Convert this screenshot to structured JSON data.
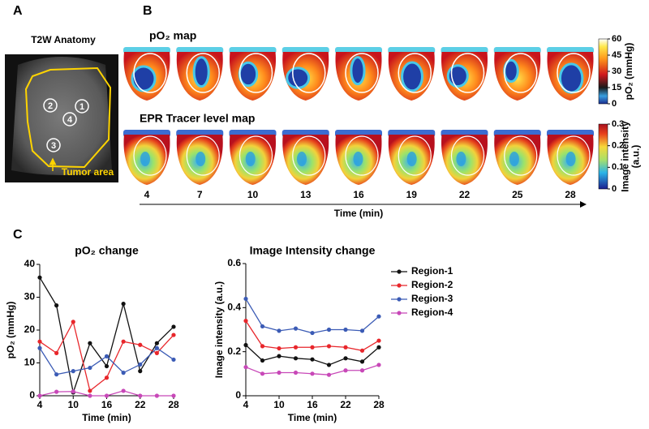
{
  "panel_a": {
    "label": "A",
    "title": "T2W Anatomy",
    "regions": [
      "1",
      "2",
      "3",
      "4"
    ],
    "annotation": "Tumor area"
  },
  "panel_b": {
    "label": "B",
    "map_titles": [
      "pO₂ map",
      "EPR Tracer level map"
    ],
    "times": [
      4,
      7,
      10,
      13,
      16,
      19,
      22,
      25,
      28
    ],
    "time_label": "Time (min)",
    "colorbars": [
      {
        "ticks": [
          0,
          15,
          30,
          45,
          60
        ],
        "label": [
          "pO₂ (mmHg)"
        ]
      },
      {
        "ticks": [
          0,
          0.1,
          0.2,
          0.3
        ],
        "label": [
          "Image intensity",
          "(a.u.)"
        ]
      }
    ]
  },
  "panel_c": {
    "label": "C"
  },
  "chart_data": [
    {
      "type": "line",
      "title": "pO₂ change",
      "x_label": "Time (min)",
      "y_label": "pO₂ (mmHg)",
      "x": [
        4,
        7,
        10,
        13,
        16,
        19,
        22,
        25,
        28
      ],
      "xlim": [
        4,
        28
      ],
      "xticks": [
        4,
        10,
        16,
        22,
        28
      ],
      "ylim": [
        0,
        40
      ],
      "yticks": [
        0,
        10,
        20,
        30,
        40
      ],
      "series": [
        {
          "name": "Region-1",
          "color": "#111111",
          "values": [
            36,
            27.5,
            1,
            16,
            9,
            28,
            7.5,
            16,
            21
          ]
        },
        {
          "name": "Region-2",
          "color": "#e8262b",
          "values": [
            16.5,
            13,
            22.5,
            1.5,
            5.5,
            16.5,
            15.5,
            13,
            18.5
          ]
        },
        {
          "name": "Region-3",
          "color": "#3b5bb5",
          "values": [
            14.5,
            6.5,
            7.5,
            8.5,
            12,
            7,
            9.5,
            14.5,
            11
          ]
        },
        {
          "name": "Region-4",
          "color": "#c848b8",
          "values": [
            0,
            1.2,
            1.3,
            0,
            0,
            1.5,
            0,
            0,
            0
          ]
        }
      ]
    },
    {
      "type": "line",
      "title": "Image Intensity change",
      "x_label": "Time (min)",
      "y_label": "Image  intensity (a.u.)",
      "x": [
        4,
        7,
        10,
        13,
        16,
        19,
        22,
        25,
        28
      ],
      "xlim": [
        4,
        28
      ],
      "xticks": [
        4,
        10,
        16,
        22,
        28
      ],
      "ylim": [
        0,
        0.6
      ],
      "yticks": [
        0,
        0.2,
        0.4,
        0.6
      ],
      "legend": "outside-right",
      "series": [
        {
          "name": "Region-1",
          "color": "#111111",
          "values": [
            0.23,
            0.16,
            0.18,
            0.17,
            0.165,
            0.14,
            0.17,
            0.155,
            0.22
          ]
        },
        {
          "name": "Region-2",
          "color": "#e8262b",
          "values": [
            0.34,
            0.225,
            0.215,
            0.22,
            0.22,
            0.225,
            0.22,
            0.205,
            0.25
          ]
        },
        {
          "name": "Region-3",
          "color": "#3b5bb5",
          "values": [
            0.44,
            0.315,
            0.295,
            0.305,
            0.285,
            0.3,
            0.3,
            0.295,
            0.36
          ]
        },
        {
          "name": "Region-4",
          "color": "#c848b8",
          "values": [
            0.13,
            0.1,
            0.105,
            0.105,
            0.1,
            0.095,
            0.115,
            0.115,
            0.14
          ]
        }
      ]
    }
  ]
}
